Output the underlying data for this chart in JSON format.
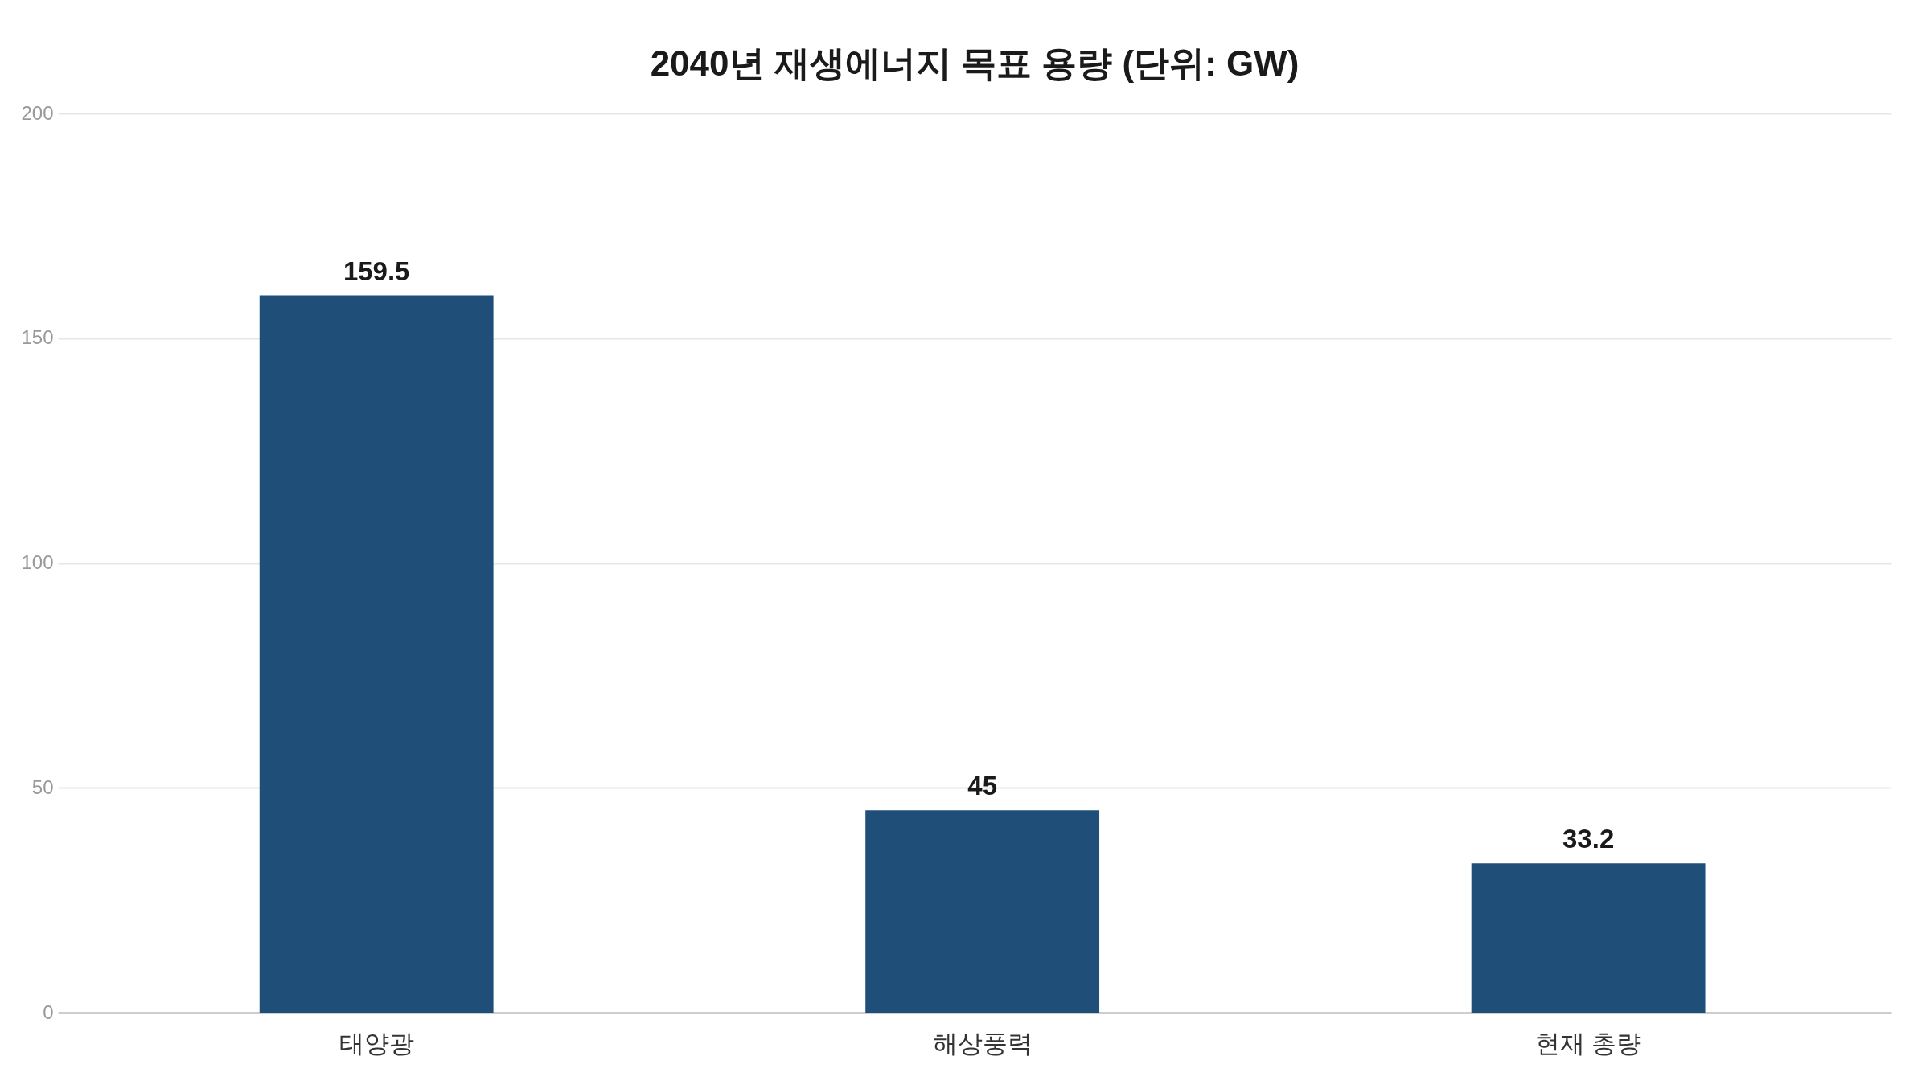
{
  "chart_data": {
    "type": "bar",
    "title": "2040년 재생에너지 목표 용량 (단위: GW)",
    "categories": [
      "태양광",
      "해상풍력",
      "현재 총량"
    ],
    "values": [
      159.5,
      45,
      33.2
    ],
    "color": "#1f4e79",
    "ylim": [
      0,
      200
    ],
    "yticks": [
      0,
      50,
      100,
      150,
      200
    ],
    "grid": "y",
    "data_labels": true
  }
}
